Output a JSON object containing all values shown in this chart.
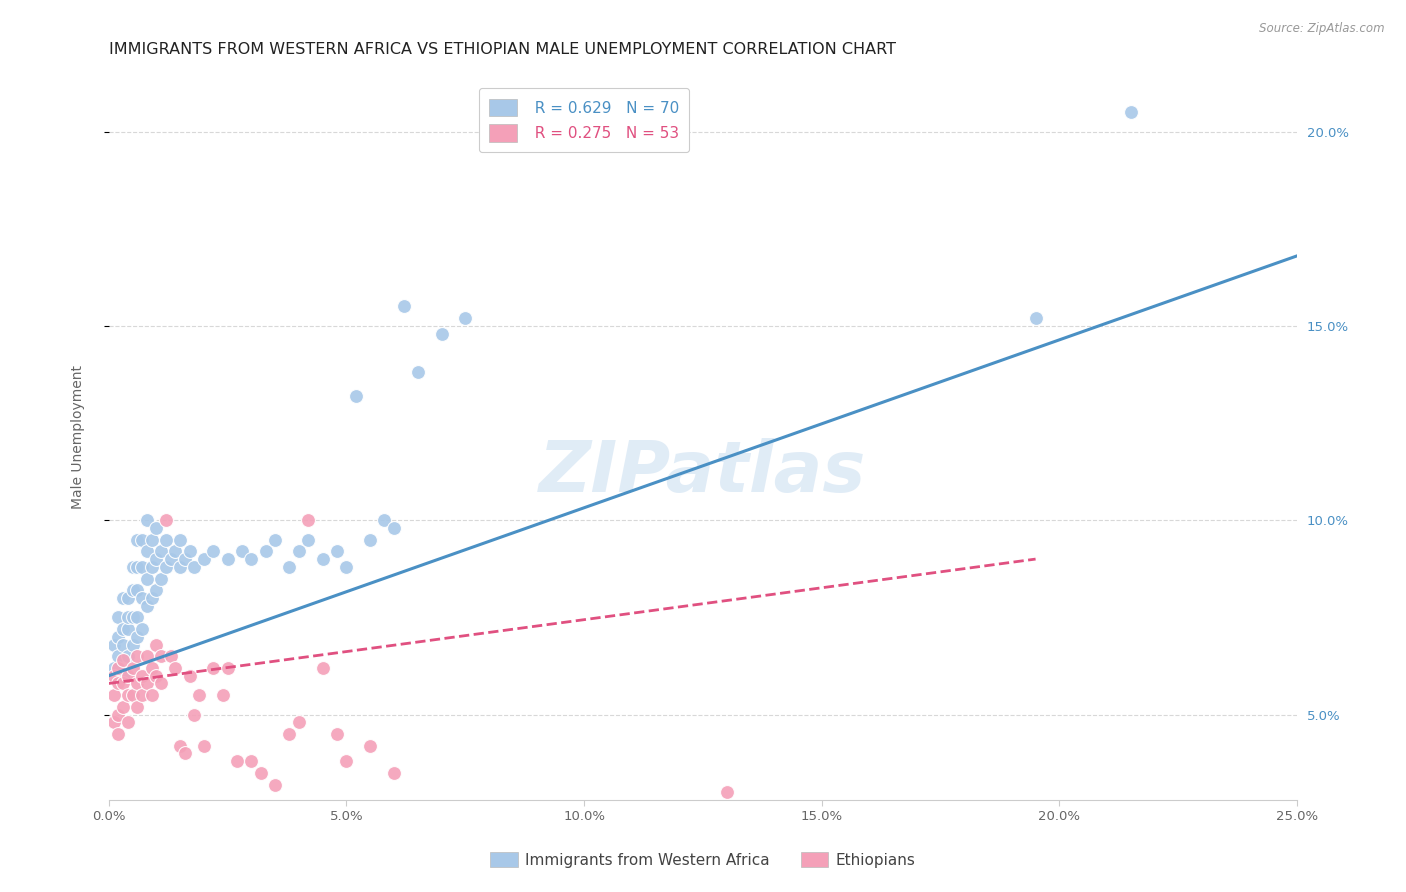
{
  "title": "IMMIGRANTS FROM WESTERN AFRICA VS ETHIOPIAN MALE UNEMPLOYMENT CORRELATION CHART",
  "source": "Source: ZipAtlas.com",
  "ylabel": "Male Unemployment",
  "xlim": [
    0.0,
    0.25
  ],
  "ylim": [
    0.028,
    0.215
  ],
  "xticks": [
    0.0,
    0.05,
    0.1,
    0.15,
    0.2,
    0.25
  ],
  "yticks_right": [
    0.05,
    0.1,
    0.15,
    0.2
  ],
  "ytick_labels_right": [
    "5.0%",
    "10.0%",
    "15.0%",
    "20.0%"
  ],
  "xtick_labels": [
    "0.0%",
    "5.0%",
    "10.0%",
    "15.0%",
    "20.0%",
    "25.0%"
  ],
  "blue_color": "#a8c8e8",
  "pink_color": "#f4a0b8",
  "blue_line_color": "#4a90c4",
  "pink_line_color": "#e05080",
  "legend_label_blue": "Immigrants from Western Africa",
  "legend_label_pink": "Ethiopians",
  "R_blue": "0.629",
  "N_blue": "70",
  "R_pink": "0.275",
  "N_pink": "53",
  "watermark": "ZIPatlas",
  "blue_scatter_x": [
    0.001,
    0.001,
    0.002,
    0.002,
    0.002,
    0.003,
    0.003,
    0.003,
    0.003,
    0.004,
    0.004,
    0.004,
    0.004,
    0.005,
    0.005,
    0.005,
    0.005,
    0.006,
    0.006,
    0.006,
    0.006,
    0.006,
    0.007,
    0.007,
    0.007,
    0.007,
    0.008,
    0.008,
    0.008,
    0.008,
    0.009,
    0.009,
    0.009,
    0.01,
    0.01,
    0.01,
    0.011,
    0.011,
    0.012,
    0.012,
    0.013,
    0.014,
    0.015,
    0.015,
    0.016,
    0.017,
    0.018,
    0.02,
    0.022,
    0.025,
    0.028,
    0.03,
    0.033,
    0.035,
    0.038,
    0.04,
    0.042,
    0.045,
    0.048,
    0.05,
    0.052,
    0.055,
    0.058,
    0.06,
    0.062,
    0.065,
    0.07,
    0.075,
    0.195,
    0.215
  ],
  "blue_scatter_y": [
    0.062,
    0.068,
    0.065,
    0.07,
    0.075,
    0.06,
    0.068,
    0.072,
    0.08,
    0.065,
    0.072,
    0.075,
    0.08,
    0.068,
    0.075,
    0.082,
    0.088,
    0.07,
    0.075,
    0.082,
    0.088,
    0.095,
    0.072,
    0.08,
    0.088,
    0.095,
    0.078,
    0.085,
    0.092,
    0.1,
    0.08,
    0.088,
    0.095,
    0.082,
    0.09,
    0.098,
    0.085,
    0.092,
    0.088,
    0.095,
    0.09,
    0.092,
    0.088,
    0.095,
    0.09,
    0.092,
    0.088,
    0.09,
    0.092,
    0.09,
    0.092,
    0.09,
    0.092,
    0.095,
    0.088,
    0.092,
    0.095,
    0.09,
    0.092,
    0.088,
    0.132,
    0.095,
    0.1,
    0.098,
    0.155,
    0.138,
    0.148,
    0.152,
    0.152,
    0.205
  ],
  "pink_scatter_x": [
    0.001,
    0.001,
    0.001,
    0.002,
    0.002,
    0.002,
    0.002,
    0.003,
    0.003,
    0.003,
    0.004,
    0.004,
    0.004,
    0.005,
    0.005,
    0.006,
    0.006,
    0.006,
    0.007,
    0.007,
    0.008,
    0.008,
    0.009,
    0.009,
    0.01,
    0.01,
    0.011,
    0.011,
    0.012,
    0.013,
    0.014,
    0.015,
    0.016,
    0.017,
    0.018,
    0.019,
    0.02,
    0.022,
    0.024,
    0.025,
    0.027,
    0.03,
    0.032,
    0.035,
    0.038,
    0.04,
    0.042,
    0.045,
    0.048,
    0.05,
    0.055,
    0.06,
    0.13
  ],
  "pink_scatter_y": [
    0.06,
    0.055,
    0.048,
    0.062,
    0.058,
    0.05,
    0.045,
    0.058,
    0.064,
    0.052,
    0.06,
    0.055,
    0.048,
    0.062,
    0.055,
    0.058,
    0.065,
    0.052,
    0.06,
    0.055,
    0.058,
    0.065,
    0.055,
    0.062,
    0.06,
    0.068,
    0.058,
    0.065,
    0.1,
    0.065,
    0.062,
    0.042,
    0.04,
    0.06,
    0.05,
    0.055,
    0.042,
    0.062,
    0.055,
    0.062,
    0.038,
    0.038,
    0.035,
    0.032,
    0.045,
    0.048,
    0.1,
    0.062,
    0.045,
    0.038,
    0.042,
    0.035,
    0.03
  ],
  "blue_trend_x": [
    0.0,
    0.25
  ],
  "blue_trend_y": [
    0.06,
    0.168
  ],
  "pink_trend_x": [
    0.0,
    0.195
  ],
  "pink_trend_y": [
    0.058,
    0.09
  ],
  "background_color": "#ffffff",
  "grid_color": "#d8d8d8",
  "title_fontsize": 11.5,
  "axis_label_fontsize": 10,
  "tick_fontsize": 9.5,
  "legend_fontsize": 11
}
